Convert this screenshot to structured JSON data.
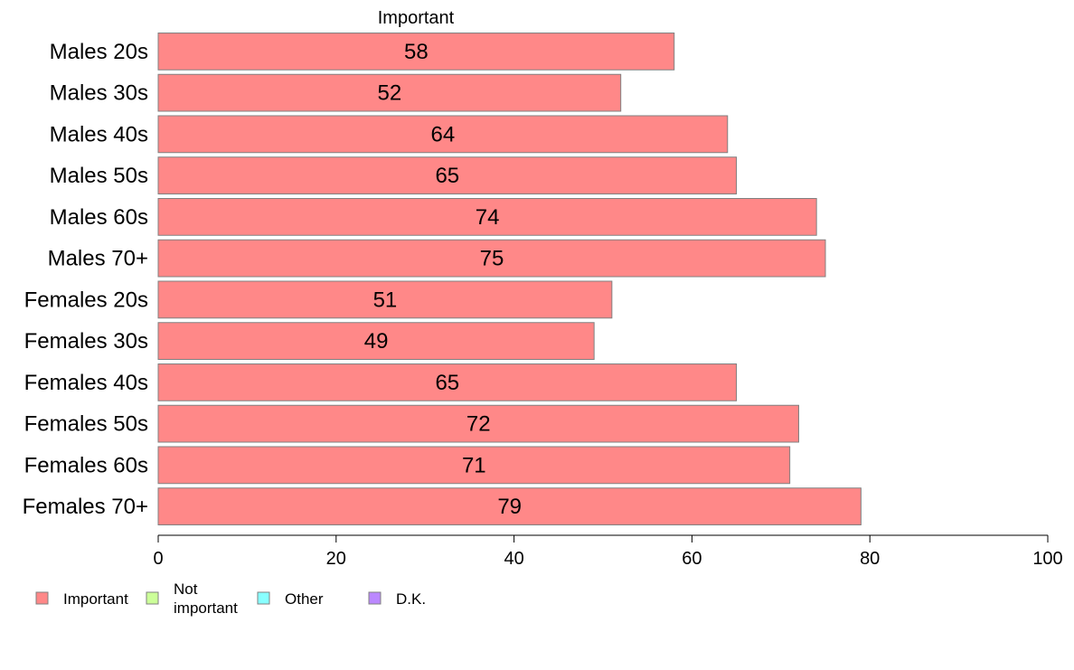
{
  "chart_data": {
    "type": "bar",
    "orientation": "horizontal",
    "stacked": true,
    "title": "",
    "xlabel": "",
    "ylabel": "",
    "column_header": "Important",
    "categories": [
      "Males 20s",
      "Males 30s",
      "Males 40s",
      "Males 50s",
      "Males 60s",
      "Males 70+",
      "Females 20s",
      "Females 30s",
      "Females 40s",
      "Females 50s",
      "Females 60s",
      "Females 70+"
    ],
    "series": [
      {
        "name": "Important",
        "color": "#ff8888",
        "values": [
          58,
          52,
          64,
          65,
          74,
          75,
          51,
          49,
          65,
          72,
          71,
          79
        ]
      }
    ],
    "data_labels": [
      "58",
      "52",
      "64",
      "65",
      "74",
      "75",
      "51",
      "49",
      "65",
      "72",
      "71",
      "79"
    ],
    "xlim": [
      0,
      100
    ],
    "xticks": [
      0,
      20,
      40,
      60,
      80,
      100
    ],
    "xtick_labels": [
      "0",
      "20",
      "40",
      "60",
      "80",
      "100"
    ],
    "grid": false,
    "legend_position": "bottom-left",
    "legend": [
      {
        "label": "Important",
        "color": "#ff8888"
      },
      {
        "label": "Not important",
        "color": "#ccff99"
      },
      {
        "label": "Other",
        "color": "#88ffff"
      },
      {
        "label": "D.K.",
        "color": "#bb88ff"
      }
    ]
  }
}
